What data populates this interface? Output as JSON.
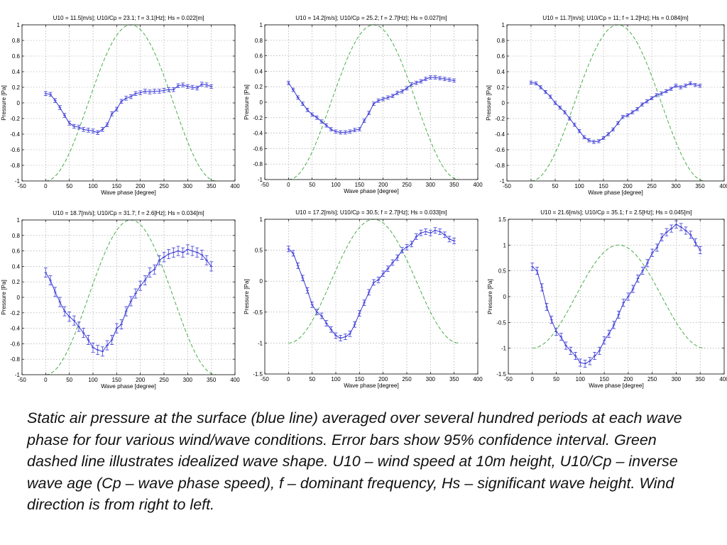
{
  "colors": {
    "pressure": "#3a3ad6",
    "wave": "#35a535",
    "grid": "#9a9a9a"
  },
  "caption": "Static air pressure at the surface (blue line) averaged over several hundred periods at each wave phase for four various wind/wave conditions. Error bars show 95% confidence interval. Green dashed line illustrates idealized wave shape. U10 – wind speed at 10m height, U10/Cp – inverse wave age (Cp – wave phase speed), f – dominant frequency, Hs – significant wave height. Wind direction is from right to left.",
  "chart_data": [
    {
      "type": "line",
      "title": "U10 = 11.5[m/s];  U10/Cp = 23.1;  f = 3.1[Hz];  Hs = 0.022[m]",
      "xlabel": "Wave phase [degree]",
      "ylabel": "Pressure [Pa]",
      "xlim": [
        -50,
        400
      ],
      "ylim": [
        -1,
        1
      ],
      "xticks": [
        -50,
        0,
        50,
        100,
        150,
        200,
        250,
        300,
        350,
        400
      ],
      "yticks": [
        -1,
        -0.8,
        -0.6,
        -0.4,
        -0.2,
        0,
        0.2,
        0.4,
        0.6,
        0.8,
        1
      ],
      "ytick_labels": [
        "-1",
        "-0.8",
        "-0.6",
        "-0.4",
        "-0.2",
        "0",
        "0.2",
        "0.4",
        "0.6",
        "0.8",
        "1"
      ],
      "grid": true,
      "x": [
        0,
        10,
        20,
        30,
        40,
        50,
        60,
        70,
        80,
        90,
        100,
        110,
        120,
        130,
        140,
        150,
        160,
        170,
        180,
        190,
        200,
        210,
        220,
        230,
        240,
        250,
        260,
        270,
        280,
        290,
        300,
        310,
        320,
        330,
        340,
        350
      ],
      "series": [
        {
          "values": [
            0.12,
            0.11,
            0.03,
            -0.06,
            -0.16,
            -0.26,
            -0.3,
            -0.31,
            -0.34,
            -0.35,
            -0.36,
            -0.38,
            -0.34,
            -0.28,
            -0.14,
            -0.08,
            0.02,
            0.06,
            0.08,
            0.12,
            0.13,
            0.15,
            0.14,
            0.15,
            0.15,
            0.16,
            0.17,
            0.17,
            0.22,
            0.23,
            0.21,
            0.2,
            0.19,
            0.24,
            0.23,
            0.21
          ],
          "error": 0.025
        }
      ],
      "wave": {
        "amplitude": 1,
        "crest_phase": 180,
        "x_range": [
          0,
          360
        ]
      }
    },
    {
      "type": "line",
      "title": "U10 = 14.2[m/s];  U10/Cp = 25.2;  f = 2.7[Hz];  Hs = 0.027[m]",
      "xlabel": "Wave phase [degree]",
      "ylabel": "Pressure [Pa]",
      "xlim": [
        -50,
        400
      ],
      "ylim": [
        -1,
        1
      ],
      "xticks": [
        -50,
        0,
        50,
        100,
        150,
        200,
        250,
        300,
        350,
        400
      ],
      "yticks": [
        -1,
        -0.8,
        -0.6,
        -0.4,
        -0.2,
        0,
        0.2,
        0.4,
        0.6,
        0.8,
        1
      ],
      "ytick_labels": [
        "-1",
        "-0.8",
        "-0.6",
        "-0.4",
        "-0.2",
        "0",
        "0.2",
        "0.4",
        "0.6",
        "0.8",
        "1"
      ],
      "grid": true,
      "x": [
        0,
        10,
        20,
        30,
        40,
        50,
        60,
        70,
        80,
        90,
        100,
        110,
        120,
        130,
        140,
        150,
        160,
        170,
        180,
        190,
        200,
        210,
        220,
        230,
        240,
        250,
        260,
        270,
        280,
        290,
        300,
        310,
        320,
        330,
        340,
        350
      ],
      "series": [
        {
          "values": [
            0.25,
            0.16,
            0.06,
            -0.02,
            -0.1,
            -0.16,
            -0.2,
            -0.25,
            -0.3,
            -0.35,
            -0.38,
            -0.39,
            -0.39,
            -0.38,
            -0.36,
            -0.35,
            -0.24,
            -0.14,
            -0.02,
            0.02,
            0.04,
            0.06,
            0.08,
            0.12,
            0.14,
            0.18,
            0.23,
            0.25,
            0.27,
            0.3,
            0.32,
            0.32,
            0.31,
            0.3,
            0.29,
            0.28
          ],
          "error": 0.022
        }
      ],
      "wave": {
        "amplitude": 1,
        "crest_phase": 180,
        "x_range": [
          0,
          360
        ]
      }
    },
    {
      "type": "line",
      "title": "U10 = 11.7[m/s];  U10/Cp = 11;  f = 1.2[Hz];  Hs = 0.084[m]",
      "xlabel": "Wave phase [degree]",
      "ylabel": "Pressure [Pa]",
      "xlim": [
        -50,
        400
      ],
      "ylim": [
        -1,
        1
      ],
      "xticks": [
        -50,
        0,
        50,
        100,
        150,
        200,
        250,
        300,
        350,
        400
      ],
      "yticks": [
        -1,
        -0.8,
        -0.6,
        -0.4,
        -0.2,
        0,
        0.2,
        0.4,
        0.6,
        0.8,
        1
      ],
      "ytick_labels": [
        "-1",
        "-0.8",
        "-0.6",
        "-0.4",
        "-0.2",
        "0",
        "0.2",
        "0.4",
        "0.6",
        "0.8",
        "1"
      ],
      "grid": true,
      "x": [
        0,
        10,
        20,
        30,
        40,
        50,
        60,
        70,
        80,
        90,
        100,
        110,
        120,
        130,
        140,
        150,
        160,
        170,
        180,
        190,
        200,
        210,
        220,
        230,
        240,
        250,
        260,
        270,
        280,
        290,
        300,
        310,
        320,
        330,
        340,
        350
      ],
      "series": [
        {
          "values": [
            0.26,
            0.25,
            0.2,
            0.14,
            0.08,
            0.0,
            -0.06,
            -0.12,
            -0.2,
            -0.28,
            -0.36,
            -0.44,
            -0.48,
            -0.5,
            -0.49,
            -0.45,
            -0.4,
            -0.34,
            -0.26,
            -0.18,
            -0.16,
            -0.12,
            -0.08,
            -0.02,
            0.02,
            0.06,
            0.1,
            0.12,
            0.15,
            0.18,
            0.22,
            0.2,
            0.22,
            0.25,
            0.23,
            0.22
          ],
          "error": 0.02
        }
      ],
      "wave": {
        "amplitude": 1,
        "crest_phase": 180,
        "x_range": [
          0,
          360
        ]
      }
    },
    {
      "type": "line",
      "title": "U10 = 18.7[m/s];  U10/Cp = 31.7;  f = 2.6[Hz];  Hs = 0.034[m]",
      "xlabel": "Wave phase [degree]",
      "ylabel": "Pressure [Pa]",
      "xlim": [
        -50,
        400
      ],
      "ylim": [
        -1,
        1
      ],
      "xticks": [
        -50,
        0,
        50,
        100,
        150,
        200,
        250,
        300,
        350,
        400
      ],
      "yticks": [
        -1,
        -0.8,
        -0.6,
        -0.4,
        -0.2,
        0,
        0.2,
        0.4,
        0.6,
        0.8,
        1
      ],
      "ytick_labels": [
        "-1",
        "-0.8",
        "-0.6",
        "-0.4",
        "-0.2",
        "0",
        "0.2",
        "0.4",
        "0.6",
        "0.8",
        "1"
      ],
      "grid": true,
      "x": [
        0,
        10,
        20,
        30,
        40,
        50,
        60,
        70,
        80,
        90,
        100,
        110,
        120,
        130,
        140,
        150,
        160,
        170,
        180,
        190,
        200,
        210,
        220,
        230,
        240,
        250,
        260,
        270,
        280,
        290,
        300,
        310,
        320,
        330,
        340,
        350
      ],
      "series": [
        {
          "values": [
            0.32,
            0.22,
            0.07,
            -0.06,
            -0.18,
            -0.25,
            -0.3,
            -0.38,
            -0.46,
            -0.55,
            -0.65,
            -0.68,
            -0.7,
            -0.62,
            -0.55,
            -0.4,
            -0.35,
            -0.18,
            -0.05,
            0.05,
            0.15,
            0.22,
            0.32,
            0.36,
            0.48,
            0.52,
            0.56,
            0.58,
            0.6,
            0.58,
            0.62,
            0.6,
            0.58,
            0.55,
            0.48,
            0.4
          ],
          "error": 0.06
        }
      ],
      "wave": {
        "amplitude": 1,
        "crest_phase": 180,
        "x_range": [
          0,
          360
        ]
      }
    },
    {
      "type": "line",
      "title": "U10 = 17.2[m/s];  U10/Cp = 30.5;  f = 2.7[Hz];  Hs = 0.033[m]",
      "xlabel": "Wave phase [degree]",
      "ylabel": "Pressure [Pa]",
      "xlim": [
        -50,
        400
      ],
      "ylim": [
        -1.5,
        1
      ],
      "xticks": [
        -50,
        0,
        50,
        100,
        150,
        200,
        250,
        300,
        350,
        400
      ],
      "yticks": [
        -1.5,
        -1,
        -0.5,
        0,
        0.5,
        1
      ],
      "ytick_labels": [
        "-1.5",
        "-1",
        "-0.5",
        "0",
        "0.5",
        "1"
      ],
      "grid": true,
      "x": [
        0,
        10,
        20,
        30,
        40,
        50,
        60,
        70,
        80,
        90,
        100,
        110,
        120,
        130,
        140,
        150,
        160,
        170,
        180,
        190,
        200,
        210,
        220,
        230,
        240,
        250,
        260,
        270,
        280,
        290,
        300,
        310,
        320,
        330,
        340,
        350
      ],
      "series": [
        {
          "values": [
            0.52,
            0.45,
            0.25,
            0.05,
            -0.15,
            -0.38,
            -0.5,
            -0.56,
            -0.68,
            -0.78,
            -0.88,
            -0.92,
            -0.9,
            -0.85,
            -0.7,
            -0.52,
            -0.35,
            -0.18,
            -0.02,
            0.02,
            0.12,
            0.2,
            0.3,
            0.38,
            0.5,
            0.55,
            0.6,
            0.72,
            0.78,
            0.8,
            0.78,
            0.82,
            0.8,
            0.75,
            0.68,
            0.65
          ],
          "error": 0.045
        }
      ],
      "wave": {
        "amplitude": 1,
        "crest_phase": 180,
        "x_range": [
          0,
          360
        ]
      }
    },
    {
      "type": "line",
      "title": "U10 = 21.6[m/s];  U10/Cp = 35.1;  f = 2.5[Hz];  Hs = 0.045[m]",
      "xlabel": "Wave phase [degree]",
      "ylabel": "Pressure [Pa]",
      "xlim": [
        -50,
        400
      ],
      "ylim": [
        -1.5,
        1.5
      ],
      "xticks": [
        -50,
        0,
        50,
        100,
        150,
        200,
        250,
        300,
        350,
        400
      ],
      "yticks": [
        -1.5,
        -1,
        -0.5,
        0,
        0.5,
        1,
        1.5
      ],
      "ytick_labels": [
        "-1.5",
        "-1",
        "-0.5",
        "0",
        "0.5",
        "1",
        "1.5"
      ],
      "grid": true,
      "x": [
        0,
        10,
        20,
        30,
        40,
        50,
        60,
        70,
        80,
        90,
        100,
        110,
        120,
        130,
        140,
        150,
        160,
        170,
        180,
        190,
        200,
        210,
        220,
        230,
        240,
        250,
        260,
        270,
        280,
        290,
        300,
        310,
        320,
        330,
        340,
        350
      ],
      "series": [
        {
          "values": [
            0.58,
            0.5,
            0.18,
            -0.2,
            -0.45,
            -0.68,
            -0.78,
            -0.95,
            -1.05,
            -1.15,
            -1.28,
            -1.3,
            -1.25,
            -1.15,
            -1.05,
            -0.85,
            -0.72,
            -0.55,
            -0.35,
            -0.12,
            0.0,
            0.15,
            0.35,
            0.5,
            0.65,
            0.85,
            0.95,
            1.15,
            1.25,
            1.32,
            1.4,
            1.35,
            1.28,
            1.2,
            1.05,
            0.9
          ],
          "error": 0.07
        }
      ],
      "wave": {
        "amplitude": 1,
        "crest_phase": 180,
        "x_range": [
          0,
          360
        ]
      }
    }
  ]
}
